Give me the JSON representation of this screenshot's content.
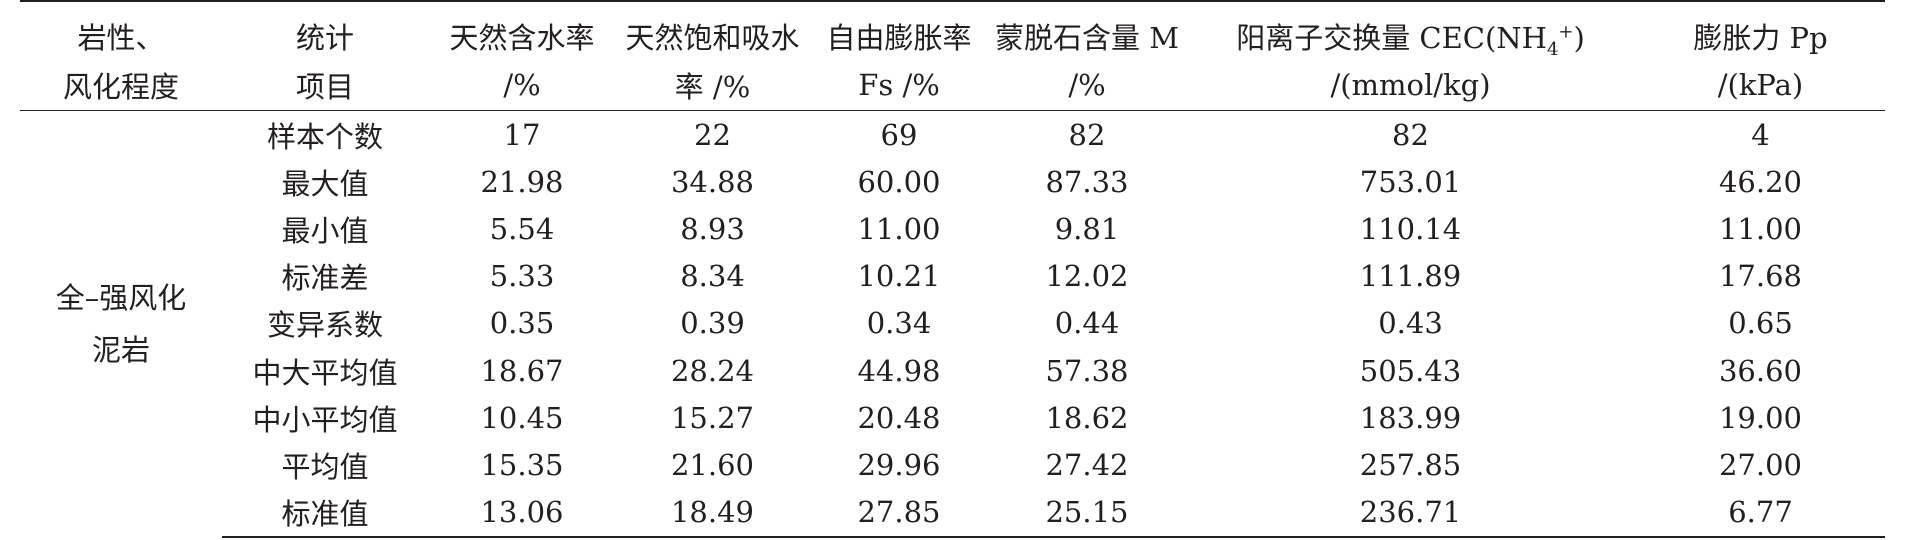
{
  "table": {
    "headers": [
      {
        "line1": "岩性、",
        "line2": "风化程度"
      },
      {
        "line1": "统计",
        "line2": "项目"
      },
      {
        "line1": "天然含水率",
        "line2": "/%"
      },
      {
        "line1": "天然饱和吸水",
        "line2": "率 /%"
      },
      {
        "line1": "自由膨胀率",
        "line2": "Fs /%"
      },
      {
        "line1": "蒙脱石含量 M",
        "line2": "/%"
      },
      {
        "line1_pre": "阳离子交换量 CEC(NH",
        "line1_sub": "4",
        "line1_sup": "+",
        "line1_post": ")",
        "line2": "/(mmol/kg)"
      },
      {
        "line1": "膨胀力 Pp",
        "line2": "/(kPa)"
      }
    ],
    "group_label": {
      "line1": "全–强风化",
      "line2": "泥岩"
    },
    "rows": [
      {
        "item": "样本个数",
        "values": [
          "17",
          "22",
          "69",
          "82",
          "82",
          "4"
        ]
      },
      {
        "item": "最大值",
        "values": [
          "21.98",
          "34.88",
          "60.00",
          "87.33",
          "753.01",
          "46.20"
        ]
      },
      {
        "item": "最小值",
        "values": [
          "5.54",
          "8.93",
          "11.00",
          "9.81",
          "110.14",
          "11.00"
        ]
      },
      {
        "item": "标准差",
        "values": [
          "5.33",
          "8.34",
          "10.21",
          "12.02",
          "111.89",
          "17.68"
        ]
      },
      {
        "item": "变异系数",
        "values": [
          "0.35",
          "0.39",
          "0.34",
          "0.44",
          "0.43",
          "0.65"
        ]
      },
      {
        "item": "中大平均值",
        "values": [
          "18.67",
          "28.24",
          "44.98",
          "57.38",
          "505.43",
          "36.60"
        ]
      },
      {
        "item": "中小平均值",
        "values": [
          "10.45",
          "15.27",
          "20.48",
          "18.62",
          "183.99",
          "19.00"
        ]
      },
      {
        "item": "平均值",
        "values": [
          "15.35",
          "21.60",
          "29.96",
          "27.42",
          "257.85",
          "27.00"
        ]
      },
      {
        "item": "标准值",
        "values": [
          "13.06",
          "18.49",
          "27.85",
          "25.15",
          "236.71",
          "6.77"
        ]
      }
    ]
  }
}
